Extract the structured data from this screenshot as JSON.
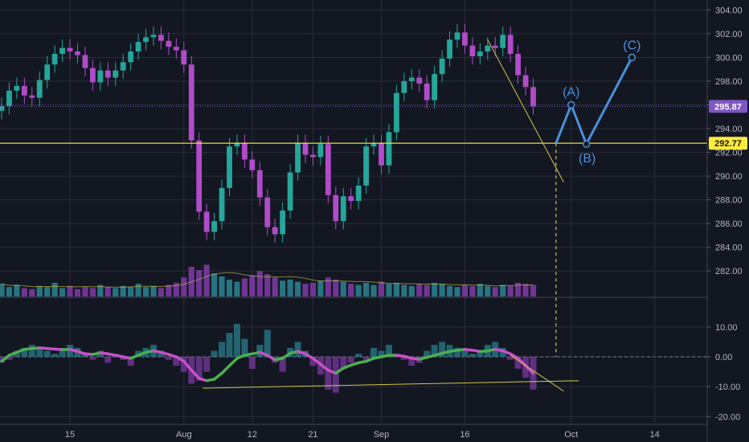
{
  "chart_data": {
    "type": "candlestick",
    "colors": {
      "background": "#131722",
      "grid": "#2a2e39",
      "up_candle": "#26a69a",
      "down_candle": "#b04cc8",
      "volume_up": "#2a7d8c",
      "volume_down": "#7b3aa0",
      "price_line": "#7e57c2",
      "support_line": "#ffeb3b",
      "trendline": "#d4c44a",
      "elliott_wave": "#4a90d9",
      "osc_up": "#4caf50",
      "osc_down": "#c850c8"
    },
    "price_axis": {
      "ticks": [
        "304.00",
        "302.00",
        "300.00",
        "298.00",
        "296.00",
        "294.00",
        "292.00",
        "290.00",
        "288.00",
        "286.00",
        "284.00",
        "282.00"
      ],
      "tick_values": [
        304,
        302,
        300,
        298,
        296,
        294,
        292,
        290,
        288,
        286,
        284,
        282
      ],
      "range": [
        281,
        304.5
      ]
    },
    "current_price": {
      "value": 295.87,
      "label": "295.87"
    },
    "support_level": {
      "value": 292.77,
      "label": "292.77"
    },
    "oscillator_axis": {
      "ticks": [
        "10.00",
        "0.00",
        "-10.00",
        "-20.00"
      ],
      "tick_values": [
        10,
        0,
        -10,
        -20
      ],
      "range": [
        -21,
        14
      ]
    },
    "x_axis": {
      "labels": [
        "15",
        "Aug",
        "12",
        "21",
        "Sep",
        "16",
        "Oct",
        "14"
      ],
      "bar_index": [
        9,
        24,
        33,
        41,
        50,
        61,
        75,
        86
      ]
    },
    "price_series": [
      {
        "x": 0,
        "y": 295.9
      },
      {
        "x": 1,
        "y": 297.2
      },
      {
        "x": 2,
        "y": 297.6
      },
      {
        "x": 3,
        "y": 296.8
      },
      {
        "x": 4,
        "y": 296.6
      },
      {
        "x": 5,
        "y": 298.1
      },
      {
        "x": 6,
        "y": 299.4
      },
      {
        "x": 7,
        "y": 300.3
      },
      {
        "x": 8,
        "y": 300.8
      },
      {
        "x": 9,
        "y": 300.5
      },
      {
        "x": 10,
        "y": 300.2
      },
      {
        "x": 11,
        "y": 299.1
      },
      {
        "x": 12,
        "y": 297.9
      },
      {
        "x": 13,
        "y": 298.9
      },
      {
        "x": 14,
        "y": 298.3
      },
      {
        "x": 15,
        "y": 298.9
      },
      {
        "x": 16,
        "y": 299.6
      },
      {
        "x": 17,
        "y": 300.5
      },
      {
        "x": 18,
        "y": 301.3
      },
      {
        "x": 19,
        "y": 301.7
      },
      {
        "x": 20,
        "y": 301.9
      },
      {
        "x": 21,
        "y": 301.4
      },
      {
        "x": 22,
        "y": 300.9
      },
      {
        "x": 23,
        "y": 300.6
      },
      {
        "x": 24,
        "y": 299.4
      },
      {
        "x": 25,
        "y": 293.0
      },
      {
        "x": 26,
        "y": 287.0
      },
      {
        "x": 27,
        "y": 285.3
      },
      {
        "x": 28,
        "y": 286.2
      },
      {
        "x": 29,
        "y": 289.0
      },
      {
        "x": 30,
        "y": 292.5
      },
      {
        "x": 31,
        "y": 292.8
      },
      {
        "x": 32,
        "y": 291.4
      },
      {
        "x": 33,
        "y": 290.5
      },
      {
        "x": 34,
        "y": 288.2
      },
      {
        "x": 35,
        "y": 285.7
      },
      {
        "x": 36,
        "y": 285.1
      },
      {
        "x": 37,
        "y": 287.1
      },
      {
        "x": 38,
        "y": 290.3
      },
      {
        "x": 39,
        "y": 292.8
      },
      {
        "x": 40,
        "y": 291.8
      },
      {
        "x": 41,
        "y": 291.6
      },
      {
        "x": 42,
        "y": 292.7
      },
      {
        "x": 43,
        "y": 288.4
      },
      {
        "x": 44,
        "y": 286.2
      },
      {
        "x": 45,
        "y": 288.3
      },
      {
        "x": 46,
        "y": 287.9
      },
      {
        "x": 47,
        "y": 289.2
      },
      {
        "x": 48,
        "y": 292.5
      },
      {
        "x": 49,
        "y": 292.8
      },
      {
        "x": 50,
        "y": 290.9
      },
      {
        "x": 51,
        "y": 293.7
      },
      {
        "x": 52,
        "y": 297.0
      },
      {
        "x": 53,
        "y": 298.0
      },
      {
        "x": 54,
        "y": 298.3
      },
      {
        "x": 55,
        "y": 297.8
      },
      {
        "x": 56,
        "y": 296.4
      },
      {
        "x": 57,
        "y": 298.6
      },
      {
        "x": 58,
        "y": 299.9
      },
      {
        "x": 59,
        "y": 301.5
      },
      {
        "x": 60,
        "y": 302.1
      },
      {
        "x": 61,
        "y": 301.0
      },
      {
        "x": 62,
        "y": 300.1
      },
      {
        "x": 63,
        "y": 300.5
      },
      {
        "x": 64,
        "y": 301.0
      },
      {
        "x": 65,
        "y": 300.8
      },
      {
        "x": 66,
        "y": 301.9
      },
      {
        "x": 67,
        "y": 300.3
      },
      {
        "x": 68,
        "y": 298.5
      },
      {
        "x": 69,
        "y": 297.5
      },
      {
        "x": 70,
        "y": 295.87
      }
    ],
    "volume_series": [
      12,
      9,
      11,
      8,
      7,
      10,
      9,
      13,
      8,
      10,
      7,
      9,
      8,
      11,
      9,
      8,
      10,
      9,
      12,
      9,
      10,
      8,
      11,
      13,
      18,
      28,
      25,
      30,
      22,
      19,
      16,
      14,
      17,
      20,
      24,
      21,
      18,
      15,
      16,
      14,
      12,
      13,
      15,
      18,
      16,
      14,
      12,
      11,
      13,
      11,
      14,
      12,
      13,
      11,
      10,
      12,
      11,
      13,
      12,
      10,
      9,
      11,
      10,
      12,
      10,
      9,
      11,
      10,
      13,
      12,
      11
    ],
    "oscillator_smooth": [
      -1.5,
      0.5,
      1.5,
      2.5,
      2.8,
      3.0,
      2.8,
      2.6,
      2.4,
      2.5,
      1.8,
      1.0,
      0.8,
      1.3,
      1.0,
      0.5,
      0.0,
      -0.5,
      0.5,
      1.5,
      2.0,
      1.5,
      0.8,
      0.0,
      -1.5,
      -4.5,
      -7.2,
      -8.0,
      -7.5,
      -5.5,
      -3.0,
      -0.5,
      0.5,
      1.0,
      1.5,
      0.5,
      -1.0,
      -0.5,
      1.2,
      1.8,
      1.0,
      -0.5,
      -2.5,
      -4.5,
      -5.5,
      -3.8,
      -2.8,
      -2.0,
      -1.5,
      -0.5,
      0.0,
      0.5,
      0.5,
      0.2,
      -0.5,
      -0.8,
      -0.2,
      0.5,
      1.2,
      1.8,
      2.2,
      2.5,
      2.2,
      1.8,
      2.0,
      2.5,
      2.0,
      1.0,
      -0.5,
      -3.0,
      -5.5
    ],
    "oscillator_histogram": [
      -2,
      -1,
      2,
      3,
      4,
      3,
      2,
      1,
      3,
      4,
      3,
      1,
      -1,
      2,
      -2,
      1,
      -1,
      -3,
      2,
      3,
      4,
      2,
      -1,
      -3,
      -5,
      -9,
      -8,
      -5,
      2,
      5,
      8,
      11,
      6,
      -4,
      4,
      9,
      -2,
      -5,
      3,
      5,
      2,
      -3,
      -6,
      -11,
      -12,
      -4,
      -2,
      1,
      -1,
      3,
      2,
      4,
      1,
      -1,
      -3,
      -2,
      2,
      4,
      5,
      4,
      3,
      2,
      1,
      2,
      4,
      5,
      3,
      -1,
      -4,
      -7,
      -11
    ],
    "annotations": {
      "wave_labels": [
        "(A)",
        "(B)",
        "(C)"
      ],
      "projection_path": [
        {
          "x": 73.0,
          "y": 292.77
        },
        {
          "x": 75.0,
          "y": 296.0
        },
        {
          "x": 77.0,
          "y": 292.7
        },
        {
          "x": 83.0,
          "y": 300.0
        }
      ],
      "trend_down_line": [
        {
          "x": 64.0,
          "y": 301.5
        },
        {
          "x": 74.0,
          "y": 289.5
        }
      ],
      "osc_trend_line": [
        {
          "x": 26.5,
          "y": -10.5
        },
        {
          "x": 76.0,
          "y": -8.0
        }
      ],
      "osc_down_line": [
        {
          "x": 67.0,
          "y": 0.5
        },
        {
          "x": 74.0,
          "y": -11.5
        }
      ],
      "dashed_vertical_x": 73.0
    }
  }
}
